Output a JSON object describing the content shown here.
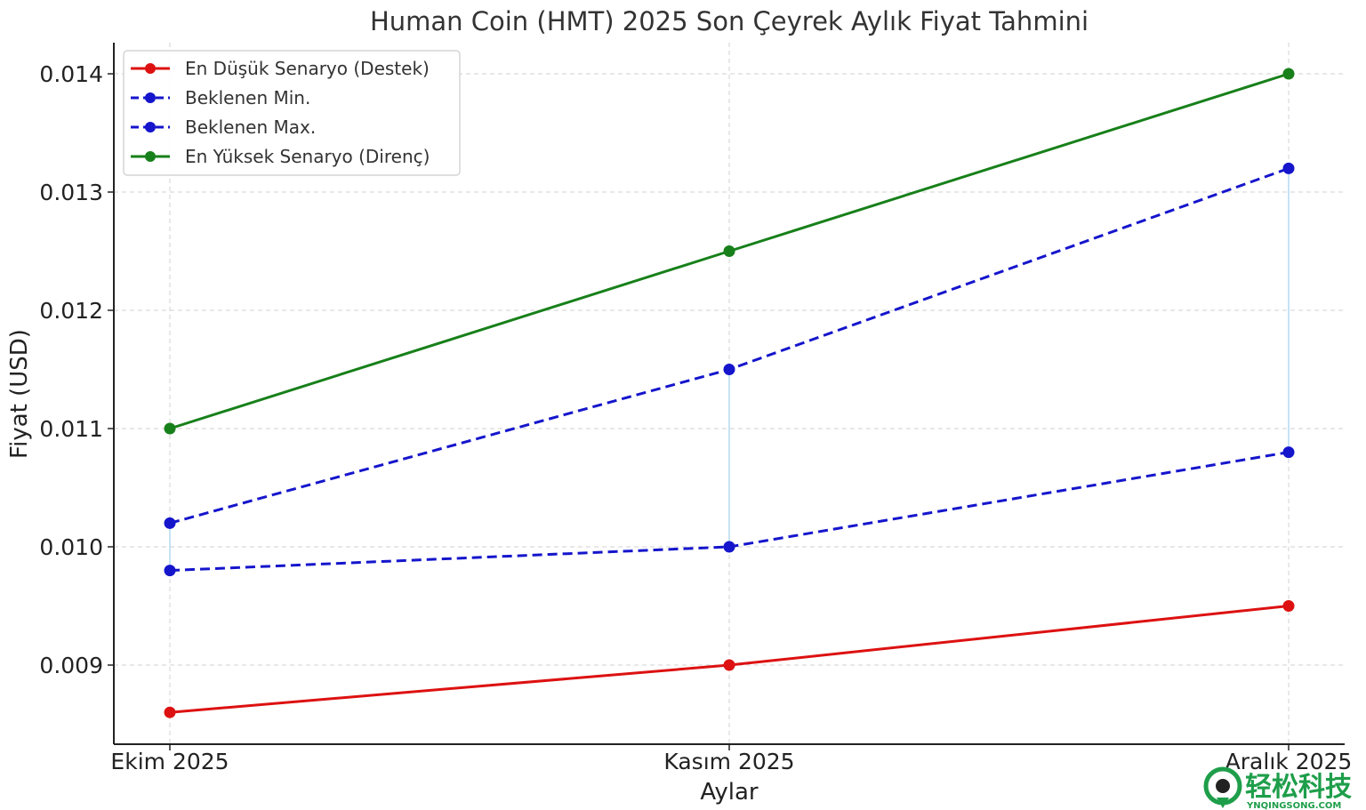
{
  "chart_data": {
    "type": "line",
    "title": "Human Coin (HMT) 2025 Son Çeyrek Aylık Fiyat Tahmini",
    "xlabel": "Aylar",
    "ylabel": "Fiyat (USD)",
    "categories": [
      "Ekim 2025",
      "Kasım 2025",
      "Aralık 2025"
    ],
    "ylim": [
      0.0084,
      0.0143
    ],
    "yticks": [
      0.009,
      0.01,
      0.011,
      0.012,
      0.013,
      0.014
    ],
    "ytick_labels": [
      "0.009",
      "0.010",
      "0.011",
      "0.012",
      "0.013",
      "0.014"
    ],
    "grid": true,
    "legend_position": "top-left",
    "series": [
      {
        "name": "En Düşük Senaryo (Destek)",
        "values": [
          0.0086,
          0.009,
          0.0095
        ],
        "color": "#dd1111",
        "style": "solid",
        "marker": "circle"
      },
      {
        "name": "Beklenen Min.",
        "values": [
          0.0098,
          0.01,
          0.0108
        ],
        "color": "#1515cc",
        "style": "dashed",
        "marker": "circle"
      },
      {
        "name": "Beklenen Max.",
        "values": [
          0.0102,
          0.0115,
          0.0132
        ],
        "color": "#1515cc",
        "style": "dashed",
        "marker": "circle"
      },
      {
        "name": "En Yüksek Senaryo (Direnç)",
        "values": [
          0.011,
          0.0125,
          0.014
        ],
        "color": "#17801a",
        "style": "solid",
        "marker": "circle"
      }
    ],
    "shaded_range_color": "#9fd0ee"
  },
  "watermark": {
    "text": "轻松科技",
    "subtext": "YNQINGSONG.COM",
    "color": "#1e9e4a"
  }
}
